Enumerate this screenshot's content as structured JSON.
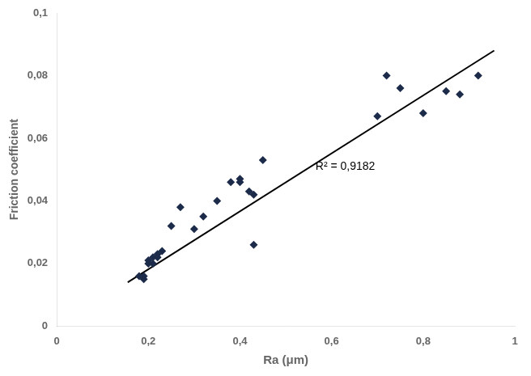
{
  "chart_data": {
    "type": "scatter",
    "x_label": "Ra (μm)",
    "y_label": "Friction coefficient",
    "series": [
      {
        "type": "scatter",
        "marker": "diamond",
        "color": "#1c2b4a",
        "x": [
          0.18,
          0.19,
          0.19,
          0.2,
          0.2,
          0.21,
          0.21,
          0.22,
          0.22,
          0.23,
          0.25,
          0.27,
          0.3,
          0.32,
          0.35,
          0.38,
          0.4,
          0.4,
          0.42,
          0.43,
          0.45,
          0.43,
          0.7,
          0.72,
          0.75,
          0.8,
          0.85,
          0.88,
          0.92
        ],
        "values": [
          0.016,
          0.015,
          0.016,
          0.02,
          0.021,
          0.02,
          0.022,
          0.022,
          0.023,
          0.024,
          0.032,
          0.038,
          0.031,
          0.035,
          0.04,
          0.046,
          0.046,
          0.047,
          0.043,
          0.042,
          0.053,
          0.026,
          0.067,
          0.08,
          0.076,
          0.068,
          0.075,
          0.074,
          0.08
        ]
      },
      {
        "type": "line",
        "color": "#000000",
        "x": [
          0.155,
          0.955
        ],
        "values": [
          0.014,
          0.088
        ]
      }
    ],
    "annotations": [
      {
        "text": "R² = 0,9182",
        "x": 0.565,
        "y": 0.049
      }
    ],
    "xlim": [
      0,
      1
    ],
    "ylim": [
      0,
      0.1
    ],
    "xticks": [
      0,
      {
        "value": 0.2,
        "label": "0,2"
      },
      {
        "value": 0.4,
        "label": "0,4"
      },
      {
        "value": 0.6,
        "label": "0,6"
      },
      {
        "value": 0.8,
        "label": "0,8"
      },
      1
    ],
    "yticks": [
      0,
      {
        "value": 0.02,
        "label": "0,02"
      },
      {
        "value": 0.04,
        "label": "0,04"
      },
      {
        "value": 0.06,
        "label": "0,06"
      },
      {
        "value": 0.08,
        "label": "0,08"
      },
      {
        "value": 0.1,
        "label": "0,1"
      }
    ],
    "grid": false
  }
}
